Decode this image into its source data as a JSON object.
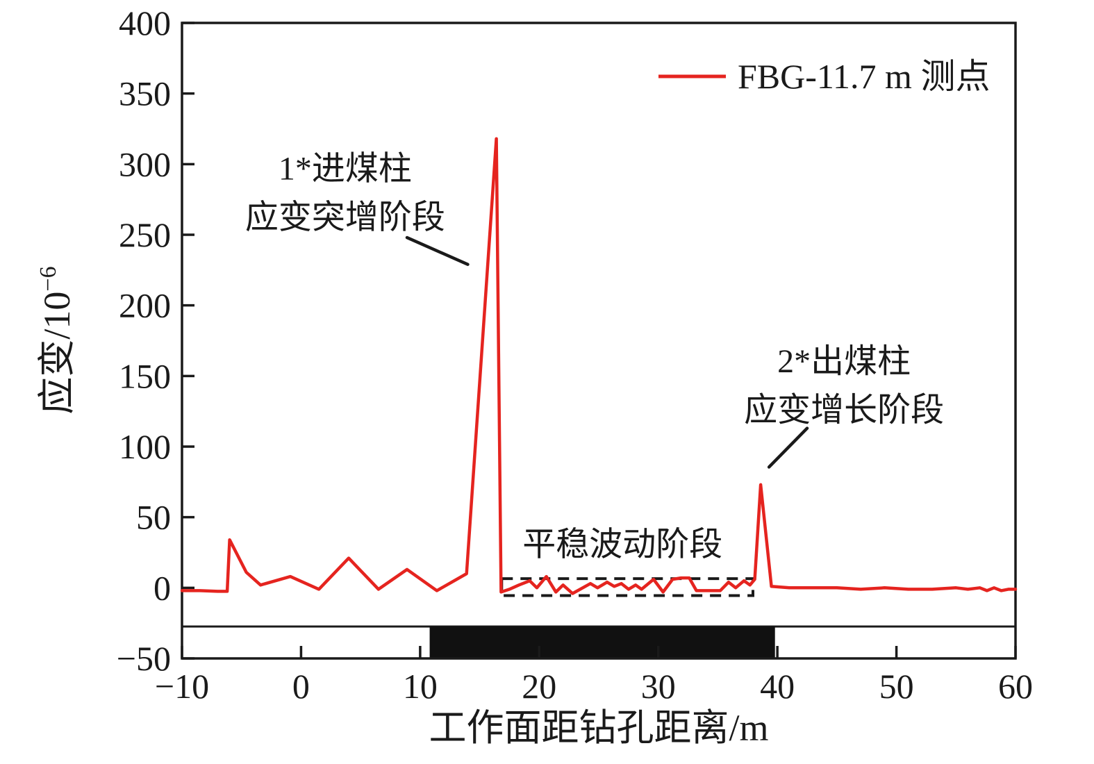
{
  "figure": {
    "background": "#ffffff",
    "ink_color": "#1a1a1a",
    "accent_red": "#e5241f"
  },
  "chart_data": {
    "type": "line",
    "title": "",
    "xlabel": "工作面距钻孔距离/m",
    "ylabel_base": "应变/10",
    "ylabel_exponent": "−6",
    "xlim": [
      -10,
      60
    ],
    "ylim": [
      -50,
      400
    ],
    "x_ticks": [
      -10,
      0,
      10,
      20,
      30,
      40,
      50,
      60
    ],
    "y_ticks": [
      400,
      350,
      300,
      250,
      200,
      150,
      100,
      50,
      0,
      -50
    ],
    "grid": false,
    "legend": {
      "position": "top-right",
      "entries": [
        {
          "label": "FBG-11.7 m 测点",
          "color": "#e5241f"
        }
      ]
    },
    "series": [
      {
        "name": "FBG-11.7 m 测点",
        "color": "#e5241f",
        "points": [
          [
            -10,
            -2
          ],
          [
            -8.5,
            -2
          ],
          [
            -7,
            -2.5
          ],
          [
            -6.2,
            -2.5
          ],
          [
            -6,
            34
          ],
          [
            -4.6,
            11
          ],
          [
            -3.4,
            2
          ],
          [
            -0.9,
            8
          ],
          [
            1.5,
            -1
          ],
          [
            4,
            21
          ],
          [
            6.5,
            -1
          ],
          [
            8.9,
            13
          ],
          [
            11.4,
            -2
          ],
          [
            13.9,
            10
          ],
          [
            16.4,
            318
          ],
          [
            16.8,
            -3
          ],
          [
            17.5,
            -1
          ],
          [
            18.3,
            2
          ],
          [
            19.2,
            5
          ],
          [
            19.8,
            0
          ],
          [
            20.6,
            8
          ],
          [
            21.4,
            -3
          ],
          [
            22,
            2
          ],
          [
            22.8,
            -4
          ],
          [
            24.3,
            3
          ],
          [
            24.9,
            0
          ],
          [
            25.7,
            4
          ],
          [
            26.3,
            1
          ],
          [
            26.9,
            3
          ],
          [
            27.5,
            -1
          ],
          [
            28.1,
            2
          ],
          [
            28.6,
            -1
          ],
          [
            29.6,
            6
          ],
          [
            30.4,
            -3
          ],
          [
            31.2,
            6
          ],
          [
            31.9,
            7
          ],
          [
            32.6,
            7
          ],
          [
            33.2,
            -2
          ],
          [
            34.2,
            -2
          ],
          [
            35.2,
            -2
          ],
          [
            35.9,
            4
          ],
          [
            36.5,
            0
          ],
          [
            37.2,
            5
          ],
          [
            37.7,
            2
          ],
          [
            38.1,
            6
          ],
          [
            38.6,
            73
          ],
          [
            39.5,
            1
          ],
          [
            41,
            0
          ],
          [
            43,
            0
          ],
          [
            45,
            0
          ],
          [
            47,
            -1
          ],
          [
            49,
            0
          ],
          [
            51,
            -1
          ],
          [
            53,
            -1
          ],
          [
            55,
            0
          ],
          [
            56,
            -1
          ],
          [
            57,
            0
          ],
          [
            57.6,
            -2
          ],
          [
            58.2,
            0
          ],
          [
            58.8,
            -2
          ],
          [
            59.4,
            -1
          ],
          [
            60,
            -1
          ]
        ]
      }
    ],
    "annotations": [
      {
        "id": "surge-stage",
        "lines": [
          {
            "text": "1*进煤柱",
            "x": 3.7,
            "y": 297
          },
          {
            "text": "应变突增阶段",
            "x": 3.7,
            "y": 262.5
          }
        ],
        "leader": {
          "x1": 8.9,
          "y1": 248,
          "x2": 14.0,
          "y2": 229
        }
      },
      {
        "id": "growth-stage",
        "lines": [
          {
            "text": "2*出煤柱",
            "x": 45.6,
            "y": 160.5
          },
          {
            "text": "应变增长阶段",
            "x": 45.6,
            "y": 126
          }
        ],
        "leader": {
          "x1": 42.5,
          "y1": 113,
          "x2": 39.3,
          "y2": 85.5
        }
      },
      {
        "id": "steady-stage",
        "lines": [
          {
            "text": "平稳波动阶段",
            "x": 27.0,
            "y": 31
          }
        ],
        "leader": null
      }
    ],
    "fluctuation_box": {
      "x1": 16.85,
      "x2": 37.95,
      "y_top": 6.5,
      "y_bottom": -5.5,
      "style": "dashed"
    },
    "stage_strip": {
      "band_top_value": -27.4,
      "black_from_x": 10.8,
      "black_to_x": 39.8
    }
  }
}
